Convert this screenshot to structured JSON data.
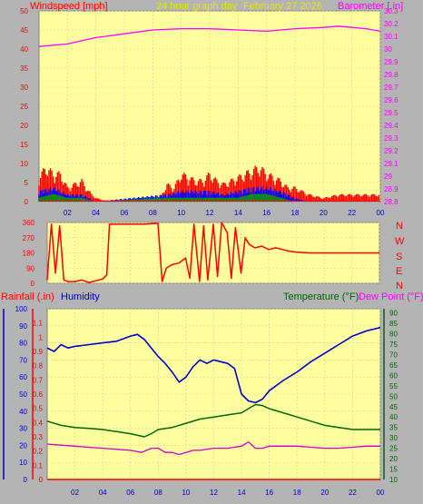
{
  "header": {
    "windspeed_label": "Windspeed [mph]",
    "title": "24 hour graph day",
    "date": "February 27 2026",
    "barometer_label": "Barometer [.in]"
  },
  "colors": {
    "background": "#b4b4b4",
    "plot": "#ffffa0",
    "wind": "#ff0000",
    "barometer": "#ff00ff",
    "rain": "#ff0000",
    "humidity": "#0000cc",
    "temperature": "#006600",
    "dewpoint": "#cc00cc",
    "hour_label": "#0000cc"
  },
  "chart_data": [
    {
      "type": "area",
      "title": "24 hour graph day",
      "subtitle": "February 27 2026",
      "ylabel": "Windspeed [mph]",
      "y2label": "Barometer [.in]",
      "ylim": [
        0,
        50
      ],
      "y2lim": [
        28.8,
        30.3
      ],
      "yticks": [
        "0",
        "5",
        "10",
        "15",
        "20",
        "25",
        "30",
        "35",
        "40",
        "45",
        "50"
      ],
      "y2ticks": [
        "28.8",
        "28.9",
        "29",
        "29.1",
        "29.2",
        "29.3",
        "29.4",
        "29.5",
        "29.6",
        "29.7",
        "29.8",
        "29.9",
        "30",
        "30.1",
        "30.2",
        "30.3"
      ],
      "xticks": [
        "02",
        "04",
        "06",
        "08",
        "10",
        "12",
        "14",
        "16",
        "18",
        "20",
        "22",
        "00"
      ],
      "x_hours": [
        0,
        24
      ],
      "series": [
        {
          "name": "Windspeed",
          "role": "gust",
          "points": [
            [
              0,
              7
            ],
            [
              0.5,
              10
            ],
            [
              1,
              8
            ],
            [
              1.5,
              8
            ],
            [
              2,
              4
            ],
            [
              2.5,
              5
            ],
            [
              3,
              6
            ],
            [
              3.5,
              3
            ],
            [
              4,
              1
            ],
            [
              5,
              0
            ],
            [
              7,
              0
            ],
            [
              8,
              0
            ],
            [
              8.5,
              1
            ],
            [
              9,
              5
            ],
            [
              9.5,
              4
            ],
            [
              10,
              8
            ],
            [
              10.5,
              7
            ],
            [
              11,
              6
            ],
            [
              11.5,
              6
            ],
            [
              12,
              8
            ],
            [
              12.5,
              6
            ],
            [
              13,
              5
            ],
            [
              13.5,
              6
            ],
            [
              14,
              7
            ],
            [
              14.5,
              8
            ],
            [
              15,
              9
            ],
            [
              15.5,
              10
            ],
            [
              16,
              8
            ],
            [
              16.5,
              7
            ],
            [
              17,
              6
            ],
            [
              17.5,
              4
            ],
            [
              18,
              4
            ],
            [
              19,
              2
            ],
            [
              20,
              1
            ],
            [
              21,
              2
            ],
            [
              22,
              2
            ],
            [
              23,
              2
            ],
            [
              24,
              2
            ]
          ]
        },
        {
          "name": "Windspeed",
          "role": "average",
          "points": [
            [
              0,
              3
            ],
            [
              1,
              4
            ],
            [
              2,
              2
            ],
            [
              3,
              2
            ],
            [
              4,
              0
            ],
            [
              9,
              2
            ],
            [
              10,
              3
            ],
            [
              11,
              3
            ],
            [
              12,
              3
            ],
            [
              13,
              2
            ],
            [
              14,
              3
            ],
            [
              15,
              4
            ],
            [
              16,
              4
            ],
            [
              17,
              3
            ],
            [
              18,
              1
            ],
            [
              19,
              0
            ],
            [
              24,
              0
            ]
          ]
        },
        {
          "name": "Windspeed",
          "role": "lull",
          "points": [
            [
              0,
              1
            ],
            [
              1,
              2
            ],
            [
              2,
              1
            ],
            [
              3,
              1
            ],
            [
              4,
              0
            ],
            [
              9,
              1
            ],
            [
              10,
              1
            ],
            [
              11,
              1
            ],
            [
              12,
              1
            ],
            [
              13,
              1
            ],
            [
              14,
              1
            ],
            [
              15,
              2
            ],
            [
              16,
              2
            ],
            [
              17,
              1
            ],
            [
              18,
              0
            ],
            [
              24,
              0
            ]
          ]
        },
        {
          "name": "Barometer",
          "points": [
            [
              0,
              30.02
            ],
            [
              2,
              30.04
            ],
            [
              4,
              30.09
            ],
            [
              6,
              30.12
            ],
            [
              8,
              30.15
            ],
            [
              10,
              30.16
            ],
            [
              12,
              30.16
            ],
            [
              14,
              30.15
            ],
            [
              16,
              30.14
            ],
            [
              18,
              30.16
            ],
            [
              20,
              30.17
            ],
            [
              21,
              30.18
            ],
            [
              22,
              30.17
            ],
            [
              23,
              30.16
            ],
            [
              24,
              30.14
            ]
          ]
        }
      ]
    },
    {
      "type": "scatter",
      "ylabel_right": [
        "N",
        "W",
        "S",
        "E",
        "N"
      ],
      "ylim": [
        0,
        360
      ],
      "yticks": [
        "0",
        "90",
        "180",
        "270",
        "360"
      ],
      "x_hours": [
        0,
        24
      ],
      "series": [
        {
          "name": "Wind direction",
          "points": [
            [
              0,
              20
            ],
            [
              0.3,
              350
            ],
            [
              0.6,
              60
            ],
            [
              0.9,
              340
            ],
            [
              1.2,
              20
            ],
            [
              1.5,
              10
            ],
            [
              2,
              10
            ],
            [
              2.5,
              20
            ],
            [
              3,
              5
            ],
            [
              3.5,
              15
            ],
            [
              4,
              25
            ],
            [
              4.3,
              50
            ],
            [
              4.5,
              350
            ],
            [
              6,
              350
            ],
            [
              7,
              350
            ],
            [
              8,
              355
            ],
            [
              8.3,
              10
            ],
            [
              8.6,
              90
            ],
            [
              9,
              110
            ],
            [
              9.5,
              120
            ],
            [
              10,
              150
            ],
            [
              10.3,
              30
            ],
            [
              10.6,
              350
            ],
            [
              11,
              10
            ],
            [
              11.3,
              340
            ],
            [
              11.6,
              20
            ],
            [
              12,
              350
            ],
            [
              12.3,
              40
            ],
            [
              12.6,
              360
            ],
            [
              13,
              300
            ],
            [
              13.3,
              30
            ],
            [
              13.6,
              330
            ],
            [
              14,
              60
            ],
            [
              14.3,
              270
            ],
            [
              14.6,
              230
            ],
            [
              15,
              210
            ],
            [
              15.5,
              220
            ],
            [
              16,
              200
            ],
            [
              16.5,
              210
            ],
            [
              17,
              200
            ],
            [
              17.5,
              190
            ],
            [
              18,
              185
            ],
            [
              19,
              180
            ],
            [
              20,
              180
            ],
            [
              22,
              180
            ],
            [
              24,
              180
            ]
          ]
        }
      ]
    },
    {
      "type": "line",
      "ylabel": "Rainfall (.in)",
      "ylabel2": "Humidity",
      "y2label": "Temperature (°F)",
      "y3label": "Dew Point (°F)",
      "rain_ylim": [
        0,
        1.2
      ],
      "rain_yticks": [
        "0",
        "0.1",
        "0.2",
        "0.3",
        "0.4",
        "0.5",
        "0.6",
        "0.7",
        "0.8",
        "0.9",
        "1",
        "1.1"
      ],
      "humidity_ylim": [
        0,
        100
      ],
      "humidity_yticks": [
        "0",
        "10",
        "20",
        "30",
        "40",
        "50",
        "60",
        "70",
        "80",
        "90",
        "100"
      ],
      "temp_ylim": [
        10,
        92
      ],
      "temp_yticks": [
        "10",
        "15",
        "20",
        "25",
        "30",
        "35",
        "40",
        "45",
        "50",
        "55",
        "60",
        "65",
        "70",
        "75",
        "80",
        "85",
        "90"
      ],
      "xticks": [
        "02",
        "04",
        "06",
        "08",
        "10",
        "12",
        "14",
        "16",
        "18",
        "20",
        "22",
        "00"
      ],
      "x_hours": [
        0,
        24
      ],
      "series": [
        {
          "name": "Humidity",
          "points": [
            [
              0,
              77
            ],
            [
              0.5,
              75
            ],
            [
              1,
              79
            ],
            [
              1.5,
              77
            ],
            [
              2,
              78
            ],
            [
              3,
              79
            ],
            [
              4,
              80
            ],
            [
              5,
              81
            ],
            [
              6,
              84
            ],
            [
              6.5,
              85
            ],
            [
              7,
              82
            ],
            [
              7.5,
              77
            ],
            [
              8,
              72
            ],
            [
              8.5,
              68
            ],
            [
              9,
              63
            ],
            [
              9.5,
              57
            ],
            [
              10,
              60
            ],
            [
              10.5,
              66
            ],
            [
              11,
              70
            ],
            [
              11.5,
              68
            ],
            [
              12,
              70
            ],
            [
              12.5,
              69
            ],
            [
              13,
              68
            ],
            [
              13.5,
              65
            ],
            [
              14,
              50
            ],
            [
              14.5,
              46
            ],
            [
              15,
              45
            ],
            [
              15.5,
              47
            ],
            [
              16,
              52
            ],
            [
              17,
              58
            ],
            [
              18,
              63
            ],
            [
              19,
              69
            ],
            [
              20,
              74
            ],
            [
              21,
              79
            ],
            [
              22,
              84
            ],
            [
              23,
              87
            ],
            [
              24,
              89
            ]
          ]
        },
        {
          "name": "Temperature",
          "points": [
            [
              0,
              38
            ],
            [
              1,
              36
            ],
            [
              2,
              35
            ],
            [
              3,
              34.5
            ],
            [
              4,
              34
            ],
            [
              5,
              33
            ],
            [
              6,
              32
            ],
            [
              7,
              30.5
            ],
            [
              7.5,
              32
            ],
            [
              8,
              34
            ],
            [
              9,
              35
            ],
            [
              10,
              37
            ],
            [
              11,
              39
            ],
            [
              12,
              40
            ],
            [
              13,
              41
            ],
            [
              14,
              42
            ],
            [
              14.5,
              44
            ],
            [
              15,
              46
            ],
            [
              15.5,
              45.5
            ],
            [
              16,
              44
            ],
            [
              17,
              42
            ],
            [
              18,
              40
            ],
            [
              19,
              38
            ],
            [
              20,
              36
            ],
            [
              21,
              35
            ],
            [
              22,
              34
            ],
            [
              23,
              34
            ],
            [
              24,
              34
            ]
          ]
        },
        {
          "name": "Dew Point",
          "points": [
            [
              0,
              27
            ],
            [
              1,
              26.5
            ],
            [
              2,
              26
            ],
            [
              3,
              25.5
            ],
            [
              4,
              25
            ],
            [
              5,
              24.5
            ],
            [
              6,
              24
            ],
            [
              6.8,
              23
            ],
            [
              7.5,
              25
            ],
            [
              8,
              25
            ],
            [
              8.5,
              23
            ],
            [
              9,
              23
            ],
            [
              9.5,
              22
            ],
            [
              10,
              23
            ],
            [
              10.5,
              24
            ],
            [
              11,
              24
            ],
            [
              12,
              25
            ],
            [
              13,
              25
            ],
            [
              14,
              26
            ],
            [
              14.5,
              28
            ],
            [
              15,
              25
            ],
            [
              15.5,
              25
            ],
            [
              16,
              26
            ],
            [
              17,
              26
            ],
            [
              18,
              26
            ],
            [
              19,
              25.5
            ],
            [
              20,
              25
            ],
            [
              21,
              25
            ],
            [
              22,
              25.5
            ],
            [
              23,
              26
            ],
            [
              24,
              26
            ]
          ]
        },
        {
          "name": "Rainfall",
          "points": [
            [
              0,
              0
            ],
            [
              24,
              0
            ]
          ]
        }
      ]
    }
  ]
}
